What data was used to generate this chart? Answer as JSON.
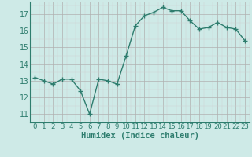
{
  "x": [
    0,
    1,
    2,
    3,
    4,
    5,
    6,
    7,
    8,
    9,
    10,
    11,
    12,
    13,
    14,
    15,
    16,
    17,
    18,
    19,
    20,
    21,
    22,
    23
  ],
  "y": [
    13.2,
    13.0,
    12.8,
    13.1,
    13.1,
    12.4,
    11.0,
    13.1,
    13.0,
    12.8,
    14.5,
    16.3,
    16.9,
    17.1,
    17.4,
    17.2,
    17.2,
    16.6,
    16.1,
    16.2,
    16.5,
    16.2,
    16.1,
    15.4
  ],
  "bg_color": "#ceeae7",
  "line_color": "#2e7d6e",
  "marker_color": "#2e7d6e",
  "grid_major_color": "#b0b0b0",
  "grid_minor_color": "#d0d0d0",
  "xlabel": "Humidex (Indice chaleur)",
  "xlabel_color": "#2e7d6e",
  "tick_color": "#2e7d6e",
  "ylim": [
    10.5,
    17.75
  ],
  "xlim": [
    -0.5,
    23.5
  ],
  "yticks": [
    11,
    12,
    13,
    14,
    15,
    16,
    17
  ],
  "xticks": [
    0,
    1,
    2,
    3,
    4,
    5,
    6,
    7,
    8,
    9,
    10,
    11,
    12,
    13,
    14,
    15,
    16,
    17,
    18,
    19,
    20,
    21,
    22,
    23
  ],
  "xtick_labels": [
    "0",
    "1",
    "2",
    "3",
    "4",
    "5",
    "6",
    "7",
    "8",
    "9",
    "10",
    "11",
    "12",
    "13",
    "14",
    "15",
    "16",
    "17",
    "18",
    "19",
    "20",
    "21",
    "22",
    "23"
  ],
  "font_size": 6.5,
  "xlabel_font_size": 7.5,
  "marker_size": 2.5,
  "line_width": 1.0
}
